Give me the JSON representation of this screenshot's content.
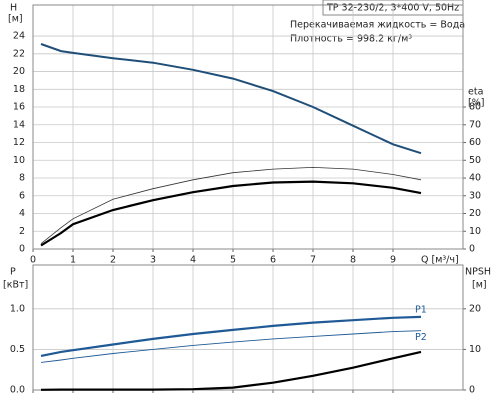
{
  "chart_data": [
    {
      "type": "line",
      "title": "TP 32-230/2, 3*400 V, 50Hz",
      "annotations": [
        "Перекачиваемая жидкость = Вода",
        "Плотность = 998.2 кг/м³"
      ],
      "x_label": "Q [м³/ч]",
      "y_label": "H",
      "y_unit": "[м]",
      "y2_label": "eta",
      "y2_unit": "[%]",
      "x": [
        0.2,
        0.7,
        1,
        2,
        3,
        4,
        5,
        6,
        7,
        8,
        9,
        9.7
      ],
      "xlim": [
        0,
        10.75
      ],
      "xticks": [
        0,
        1,
        2,
        3,
        4,
        5,
        6,
        7,
        8,
        9
      ],
      "x_tick_labels": true,
      "ylim": [
        0,
        27.5
      ],
      "yticks": [
        0,
        2,
        4,
        6,
        8,
        10,
        12,
        14,
        16,
        18,
        20,
        22,
        24
      ],
      "y2lim": [
        0,
        137.5
      ],
      "y2ticks": [
        0,
        10,
        20,
        30,
        40,
        50,
        60,
        70,
        80
      ],
      "grid": true,
      "series": [
        {
          "color": "#1f4e79",
          "width": 2,
          "values": [
            23.1,
            22.3,
            22.1,
            21.5,
            21.0,
            20.2,
            19.2,
            17.8,
            16.0,
            13.9,
            11.8,
            10.8
          ]
        },
        {
          "color": "#333333",
          "width": 0.8,
          "axis": "y2",
          "values": [
            3,
            12,
            17,
            28,
            34,
            39,
            43,
            45,
            46,
            45,
            42,
            39
          ]
        },
        {
          "color": "#000000",
          "width": 2.2,
          "axis": "y2",
          "values": [
            2,
            9,
            14,
            22,
            27.5,
            32,
            35.5,
            37.5,
            38,
            37,
            34.5,
            31.5
          ]
        }
      ]
    },
    {
      "type": "line",
      "y_label": "P",
      "y_unit": "[кВт]",
      "y2_label": "NPSH",
      "y2_unit": "[м]",
      "x": [
        0.2,
        0.7,
        1,
        2,
        3,
        4,
        5,
        6,
        7,
        8,
        9,
        9.7
      ],
      "xlim": [
        0,
        10.75
      ],
      "xticks": [
        0,
        1,
        2,
        3,
        4,
        5,
        6,
        7,
        8,
        9
      ],
      "x_tick_labels": false,
      "ylim": [
        0,
        1.54
      ],
      "yticks": [
        {
          "value": 0,
          "label": "0.0"
        },
        0.5,
        {
          "value": 1,
          "label": "1.0"
        }
      ],
      "y2lim": [
        0,
        30.8
      ],
      "y2ticks": [
        0,
        10,
        20
      ],
      "grid": true,
      "series": [
        {
          "name": "P1",
          "color": "#1f5a96",
          "width": 2.2,
          "values": [
            0.42,
            0.47,
            0.49,
            0.56,
            0.63,
            0.69,
            0.74,
            0.79,
            0.83,
            0.86,
            0.89,
            0.9
          ]
        },
        {
          "name": "P2",
          "color": "#1f5a96",
          "width": 0.9,
          "values": [
            0.34,
            0.37,
            0.39,
            0.45,
            0.5,
            0.55,
            0.59,
            0.63,
            0.66,
            0.69,
            0.72,
            0.73
          ]
        },
        {
          "color": "#000000",
          "width": 2.2,
          "axis": "y2",
          "values": [
            0.05,
            0.1,
            0.1,
            0.1,
            0.1,
            0.2,
            0.6,
            1.8,
            3.5,
            5.5,
            7.8,
            9.4
          ]
        }
      ]
    }
  ]
}
